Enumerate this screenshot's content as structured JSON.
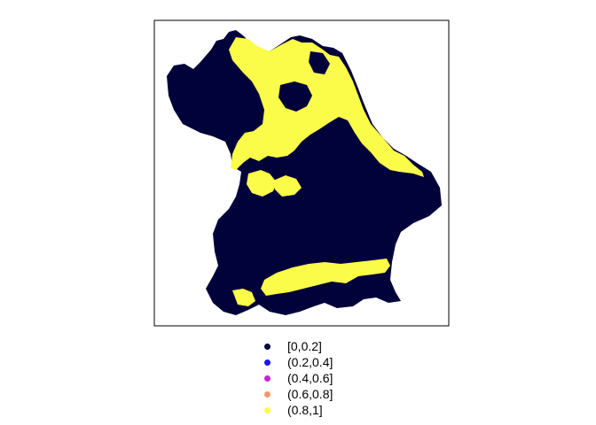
{
  "map": {
    "frame_style": "single black border, no axes",
    "marker": "filled circle",
    "background": "#ffffff"
  },
  "legend": {
    "position": "bottom-center",
    "items": [
      {
        "label": "[0,0.2]",
        "color": "#02023a"
      },
      {
        "label": "(0.2,0.4]",
        "color": "#1a14ff"
      },
      {
        "label": "(0.4,0.6]",
        "color": "#c126d0"
      },
      {
        "label": "(0.6,0.8]",
        "color": "#f29a6a"
      },
      {
        "label": "(0.8,1]",
        "color": "#fbfb4a"
      }
    ]
  }
}
